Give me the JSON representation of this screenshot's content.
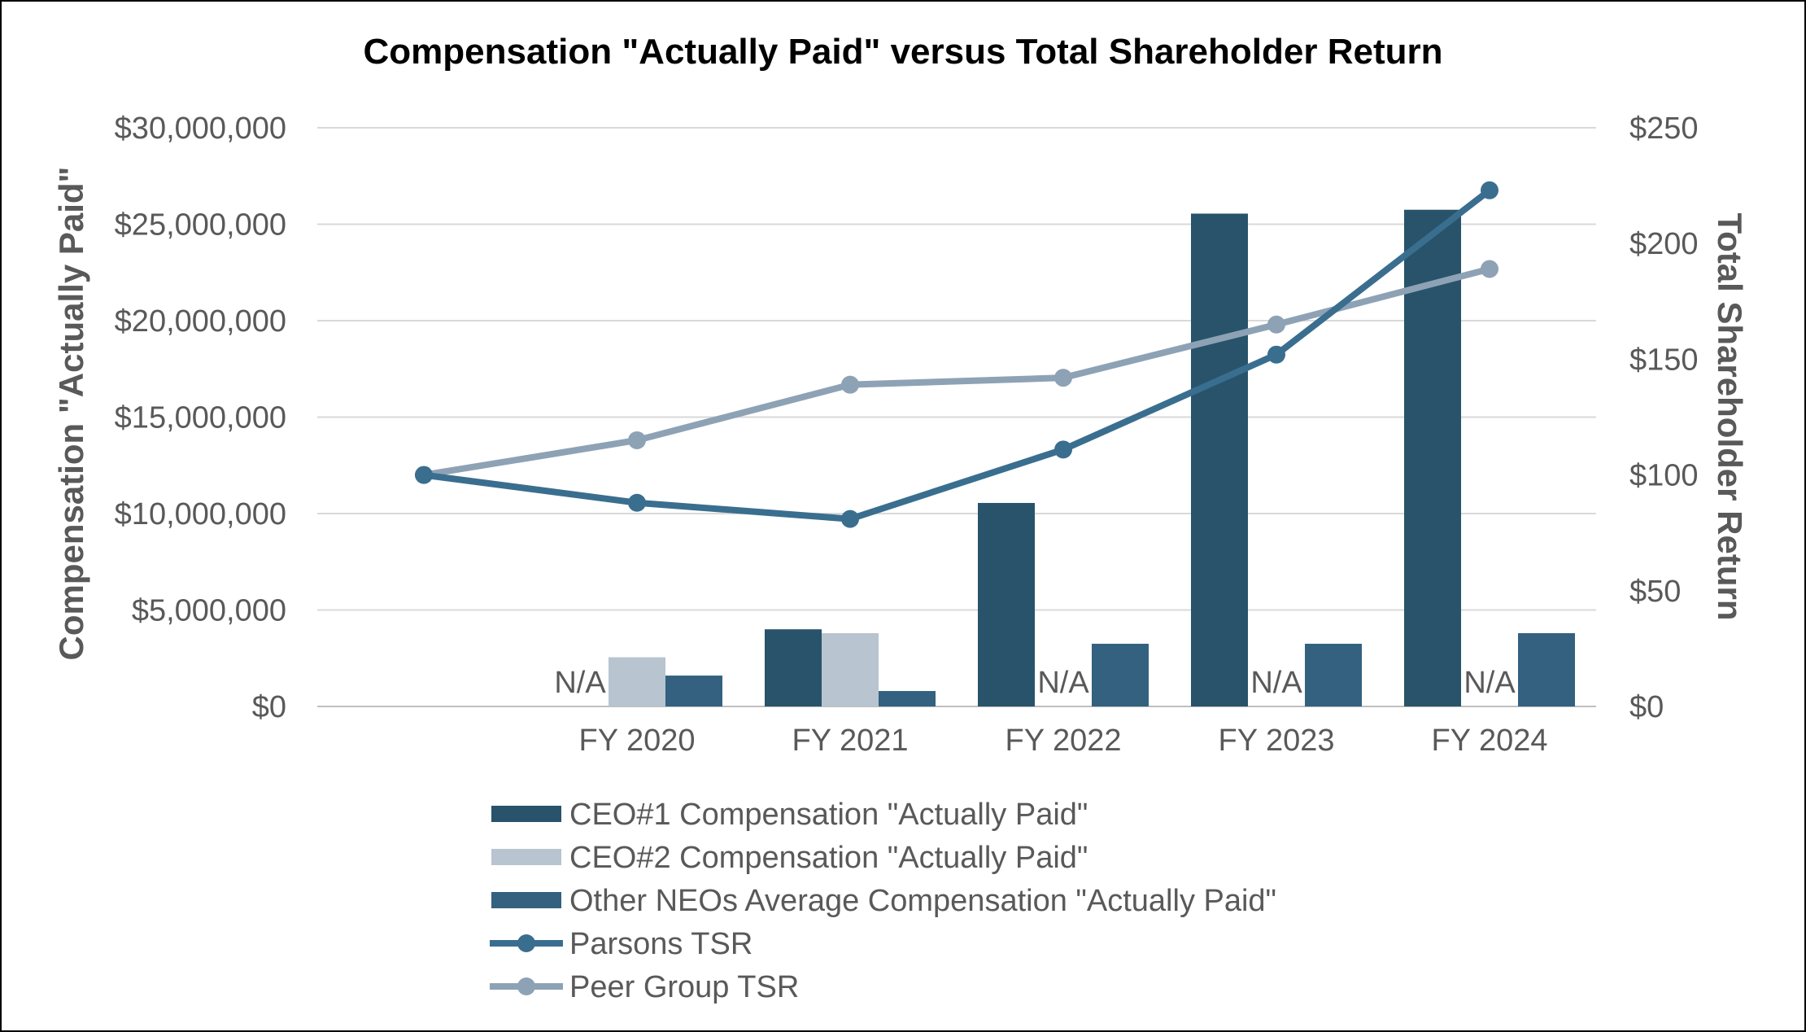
{
  "chart_data": {
    "type": "bar",
    "title": "Compensation \"Actually Paid\" versus Total Shareholder Return",
    "categories": [
      "",
      "FY 2020",
      "FY 2021",
      "FY 2022",
      "FY 2023",
      "FY 2024"
    ],
    "ylabel_left": "Compensation \"Actually Paid\"",
    "ylabel_right": "Total Shareholder Return",
    "ylim_left": [
      0,
      30000000
    ],
    "ylim_right": [
      0,
      250
    ],
    "yticks_left": [
      "$0",
      "$5,000,000",
      "$10,000,000",
      "$15,000,000",
      "$20,000,000",
      "$25,000,000",
      "$30,000,000"
    ],
    "yticks_right": [
      "$0",
      "$50",
      "$100",
      "$150",
      "$200",
      "$250"
    ],
    "grid": true,
    "legend_position": "bottom",
    "bar_series": [
      {
        "name": "CEO#1 Compensation \"Actually Paid\"",
        "color": "#28536b",
        "values": [
          null,
          null,
          4000000,
          10550000,
          25550000,
          25750000
        ]
      },
      {
        "name": "CEO#2 Compensation \"Actually Paid\"",
        "color": "#b8c4cf",
        "values": [
          null,
          2550000,
          3800000,
          null,
          null,
          null
        ]
      },
      {
        "name": "Other NEOs Average Compensation \"Actually Paid\"",
        "color": "#33617f",
        "values": [
          null,
          1600000,
          800000,
          3250000,
          3250000,
          3800000
        ]
      }
    ],
    "line_series": [
      {
        "name": "Parsons TSR",
        "color": "#3a6e8f",
        "values": [
          100,
          88,
          81,
          111,
          152,
          223
        ]
      },
      {
        "name": "Peer Group TSR",
        "color": "#8ea2b5",
        "values": [
          100,
          115,
          139,
          142,
          165,
          189
        ]
      }
    ],
    "annotations": [
      {
        "text": "N/A",
        "category": "FY 2020",
        "series": "CEO#1 Compensation \"Actually Paid\""
      },
      {
        "text": "N/A",
        "category": "FY 2022",
        "series": "CEO#2 Compensation \"Actually Paid\""
      },
      {
        "text": "N/A",
        "category": "FY 2023",
        "series": "CEO#2 Compensation \"Actually Paid\""
      },
      {
        "text": "N/A",
        "category": "FY 2024",
        "series": "CEO#2 Compensation \"Actually Paid\""
      }
    ]
  }
}
